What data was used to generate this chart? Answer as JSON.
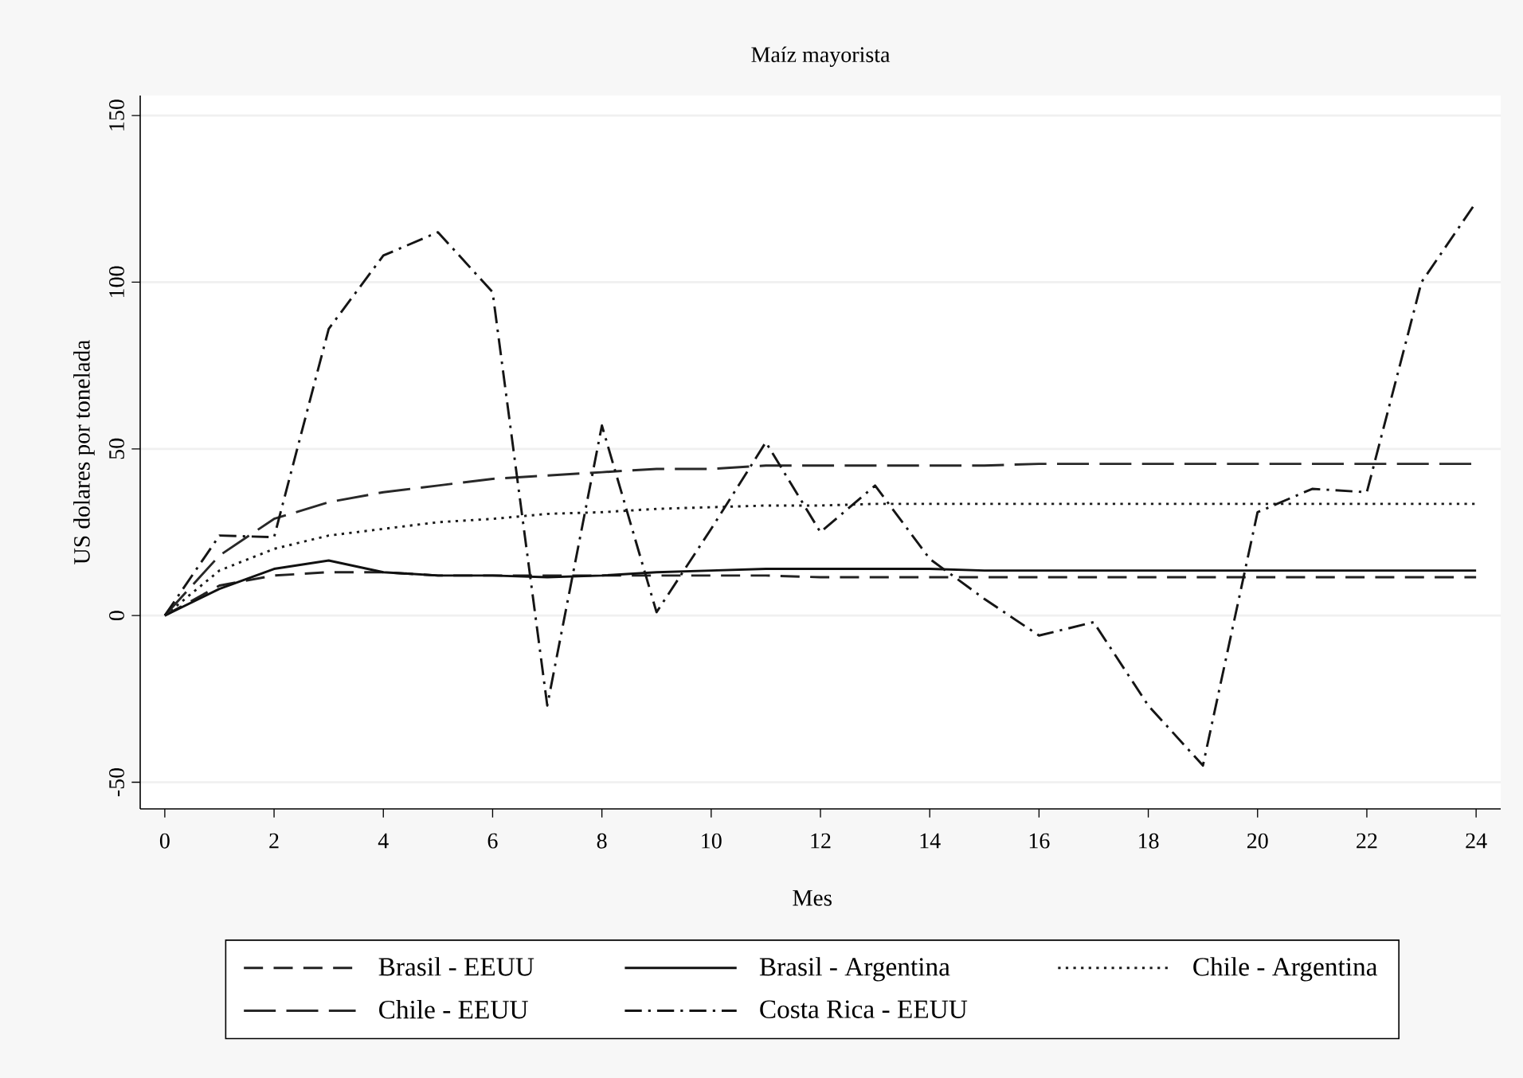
{
  "chart_data": {
    "type": "line",
    "title": "Maíz mayorista",
    "xlabel": "Mes",
    "ylabel": "US dolares por tonelada",
    "x": [
      0,
      1,
      2,
      3,
      4,
      5,
      6,
      7,
      8,
      9,
      10,
      11,
      12,
      13,
      14,
      15,
      16,
      17,
      18,
      19,
      20,
      21,
      22,
      23,
      24
    ],
    "series": [
      {
        "name": "Brasil - EEUU",
        "color": "#222222",
        "line_style": "dashed",
        "values": [
          0,
          9,
          12,
          13,
          13,
          12,
          12,
          12,
          12,
          12,
          12,
          12,
          11.5,
          11.5,
          11.5,
          11.5,
          11.5,
          11.5,
          11.5,
          11.5,
          11.5,
          11.5,
          11.5,
          11.5,
          11.5
        ]
      },
      {
        "name": "Brasil - Argentina",
        "color": "#111111",
        "line_style": "solid",
        "values": [
          0,
          8,
          14,
          16.5,
          13,
          12,
          12,
          11.5,
          12,
          13,
          13.5,
          14,
          14,
          14,
          14,
          13.5,
          13.5,
          13.5,
          13.5,
          13.5,
          13.5,
          13.5,
          13.5,
          13.5,
          13.5
        ]
      },
      {
        "name": "Chile - Argentina",
        "color": "#1b1b1b",
        "line_style": "dotted",
        "values": [
          0,
          13.5,
          20,
          24,
          26,
          28,
          29,
          30.5,
          31,
          32,
          32.5,
          33,
          33,
          33.5,
          33.5,
          33.5,
          33.5,
          33.5,
          33.5,
          33.5,
          33.5,
          33.5,
          33.5,
          33.5,
          33.5
        ]
      },
      {
        "name": "Chile - EEUU",
        "color": "#282828",
        "line_style": "longdash",
        "values": [
          0,
          18,
          29,
          34,
          37,
          39,
          41,
          42,
          43,
          44,
          44,
          45,
          45,
          45,
          45,
          45,
          45.5,
          45.5,
          45.5,
          45.5,
          45.5,
          45.5,
          45.5,
          45.5,
          45.5
        ]
      },
      {
        "name": "Costa Rica - EEUU",
        "color": "#151515",
        "line_style": "dashdot",
        "values": [
          0,
          24,
          23.5,
          86,
          108,
          115,
          97,
          -27,
          57,
          1,
          26,
          52,
          25,
          39,
          17,
          5,
          -6,
          -2,
          -27,
          -45,
          31,
          38,
          37,
          100,
          124
        ]
      }
    ],
    "xlim": [
      -0.45,
      24.45
    ],
    "ylim": [
      -58,
      156
    ],
    "xticks": [
      0,
      2,
      4,
      6,
      8,
      10,
      12,
      14,
      16,
      18,
      20,
      22,
      24
    ],
    "yticks": [
      -50,
      0,
      50,
      100,
      150
    ],
    "grid": "y",
    "legend": "bottom"
  }
}
